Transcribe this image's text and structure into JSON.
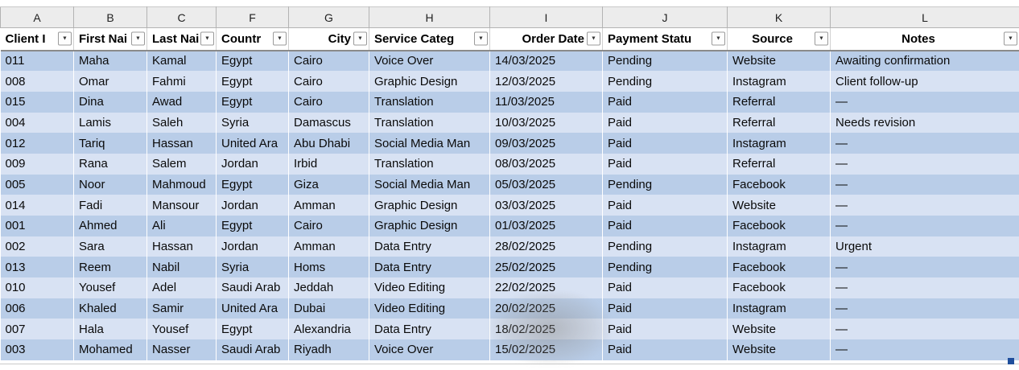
{
  "sheet": {
    "column_letters": [
      "A",
      "B",
      "C",
      "F",
      "G",
      "H",
      "I",
      "J",
      "K",
      "L"
    ],
    "headers": [
      "Client I",
      "First Nai",
      "Last Nai",
      "Countr",
      "City",
      "Service Categ",
      "Order Date",
      "Payment Statu",
      "Source",
      "Notes"
    ],
    "rows": [
      [
        "011",
        "Maha",
        "Kamal",
        "Egypt",
        "Cairo",
        "Voice Over",
        "14/03/2025",
        "Pending",
        "Website",
        "Awaiting confirmation"
      ],
      [
        "008",
        "Omar",
        "Fahmi",
        "Egypt",
        "Cairo",
        "Graphic Design",
        "12/03/2025",
        "Pending",
        "Instagram",
        "Client follow-up"
      ],
      [
        "015",
        "Dina",
        "Awad",
        "Egypt",
        "Cairo",
        "Translation",
        "11/03/2025",
        "Paid",
        "Referral",
        "—"
      ],
      [
        "004",
        "Lamis",
        "Saleh",
        "Syria",
        "Damascus",
        "Translation",
        "10/03/2025",
        "Paid",
        "Referral",
        "Needs revision"
      ],
      [
        "012",
        "Tariq",
        "Hassan",
        "United Ara",
        "Abu Dhabi",
        "Social Media Man",
        "09/03/2025",
        "Paid",
        "Instagram",
        "—"
      ],
      [
        "009",
        "Rana",
        "Salem",
        "Jordan",
        "Irbid",
        "Translation",
        "08/03/2025",
        "Paid",
        "Referral",
        "—"
      ],
      [
        "005",
        "Noor",
        "Mahmoud",
        "Egypt",
        "Giza",
        "Social Media Man",
        "05/03/2025",
        "Pending",
        "Facebook",
        "—"
      ],
      [
        "014",
        "Fadi",
        "Mansour",
        "Jordan",
        "Amman",
        "Graphic Design",
        "03/03/2025",
        "Paid",
        "Website",
        "—"
      ],
      [
        "001",
        "Ahmed",
        "Ali",
        "Egypt",
        "Cairo",
        "Graphic Design",
        "01/03/2025",
        "Paid",
        "Facebook",
        "—"
      ],
      [
        "002",
        "Sara",
        "Hassan",
        "Jordan",
        "Amman",
        "Data Entry",
        "28/02/2025",
        "Pending",
        "Instagram",
        "Urgent"
      ],
      [
        "013",
        "Reem",
        "Nabil",
        "Syria",
        "Homs",
        "Data Entry",
        "25/02/2025",
        "Pending",
        "Facebook",
        "—"
      ],
      [
        "010",
        "Yousef",
        "Adel",
        "Saudi Arab",
        "Jeddah",
        "Video Editing",
        "22/02/2025",
        "Paid",
        "Facebook",
        "—"
      ],
      [
        "006",
        "Khaled",
        "Samir",
        "United Ara",
        "Dubai",
        "Video Editing",
        "20/02/2025",
        "Paid",
        "Instagram",
        "—"
      ],
      [
        "007",
        "Hala",
        "Yousef",
        "Egypt",
        "Alexandria",
        "Data Entry",
        "18/02/2025",
        "Paid",
        "Website",
        "—"
      ],
      [
        "003",
        "Mohamed",
        "Nasser",
        "Saudi Arab",
        "Riyadh",
        "Voice Over",
        "15/02/2025",
        "Paid",
        "Website",
        "—"
      ]
    ]
  },
  "icons": {
    "filter_arrow": "▼"
  },
  "colors": {
    "band_dark": "#b9cde8",
    "band_light": "#d8e2f3",
    "header_bg": "#ffffff",
    "letters_bg": "#ececec",
    "fill_handle": "#1f4e9c"
  }
}
